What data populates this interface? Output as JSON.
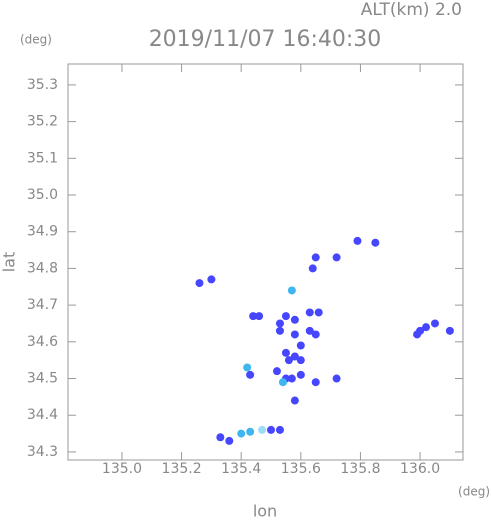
{
  "chart_data": {
    "type": "scatter",
    "title": "2019/11/07 16:40:30",
    "subtitle": "ALT(km) 2.0",
    "ylabel": "lat",
    "yunit": "(deg)",
    "xlabel": "lon",
    "xunit": "(deg)",
    "xlim": [
      134.819,
      136.144
    ],
    "ylim": [
      34.278,
      35.357
    ],
    "xticks": [
      {
        "value": 135,
        "label": "135.0"
      },
      135.2,
      135.4,
      135.6,
      135.8,
      {
        "value": 136,
        "label": "136.0"
      }
    ],
    "yticks": [
      34.3,
      34.4,
      34.5,
      34.6,
      34.7,
      34.8,
      34.9,
      {
        "value": 35,
        "label": "35.0"
      },
      35.1,
      35.2,
      35.3
    ],
    "x": [
      135.26,
      135.3,
      135.79,
      135.85,
      135.65,
      135.72,
      135.64,
      135.57,
      135.44,
      135.46,
      135.55,
      135.53,
      135.58,
      135.63,
      135.66,
      135.53,
      135.58,
      135.63,
      135.65,
      135.55,
      135.56,
      135.58,
      135.6,
      135.6,
      135.42,
      135.43,
      135.52,
      135.55,
      135.54,
      135.57,
      135.6,
      135.65,
      135.72,
      135.58,
      136.0,
      136.02,
      136.05,
      135.99,
      136.1,
      135.33,
      135.36,
      135.4,
      135.43,
      135.47,
      135.5,
      135.53
    ],
    "y": [
      34.76,
      34.77,
      34.875,
      34.87,
      34.83,
      34.83,
      34.8,
      34.74,
      34.67,
      34.67,
      34.67,
      34.65,
      34.66,
      34.68,
      34.68,
      34.63,
      34.62,
      34.63,
      34.62,
      34.57,
      34.55,
      34.56,
      34.59,
      34.55,
      34.53,
      34.51,
      34.52,
      34.5,
      34.49,
      34.5,
      34.51,
      34.49,
      34.5,
      34.44,
      34.63,
      34.64,
      34.65,
      34.62,
      34.63,
      34.34,
      34.33,
      34.35,
      34.355,
      34.36,
      34.36,
      34.36
    ],
    "colors": [
      "#4646ff",
      "#4646ff",
      "#4646ff",
      "#4646ff",
      "#4646ff",
      "#4646ff",
      "#4646ff",
      "#3fb6f0",
      "#4646ff",
      "#4646ff",
      "#4646ff",
      "#4646ff",
      "#4646ff",
      "#4646ff",
      "#4646ff",
      "#4646ff",
      "#4646ff",
      "#4646ff",
      "#4646ff",
      "#4646ff",
      "#4646ff",
      "#4646ff",
      "#4646ff",
      "#4646ff",
      "#3fb6f0",
      "#4646ff",
      "#4646ff",
      "#4646ff",
      "#3fb6f0",
      "#4646ff",
      "#4646ff",
      "#4646ff",
      "#4646ff",
      "#4646ff",
      "#4646ff",
      "#4646ff",
      "#4646ff",
      "#4646ff",
      "#4646ff",
      "#4646ff",
      "#4646ff",
      "#3fb6f0",
      "#3fb6f0",
      "#9fdcf5",
      "#4646ff",
      "#4646ff"
    ]
  }
}
